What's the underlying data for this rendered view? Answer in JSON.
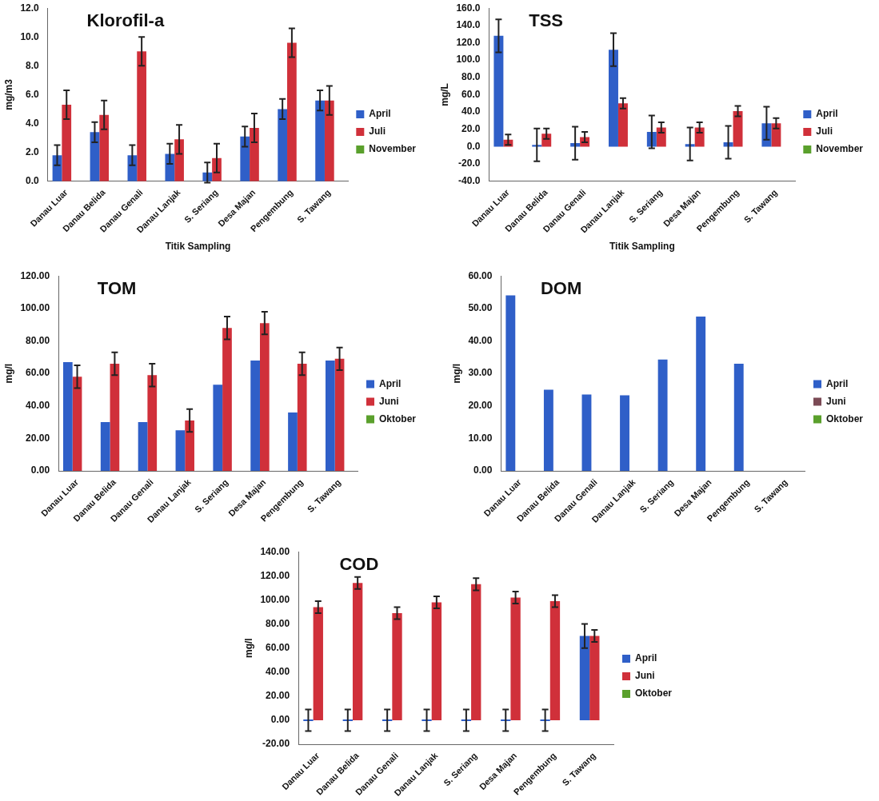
{
  "chart_data": [
    {
      "type": "bar",
      "title": "Klorofil-a",
      "ylabel": "mg/m3",
      "xlabel": "Titik Sampling",
      "categories": [
        "Danau Luar",
        "Danau Belida",
        "Danau Genali",
        "Danau Lanjak",
        "S. Seriang",
        "Desa Majan",
        "Pengembung",
        "S. Tawang"
      ],
      "series": [
        {
          "name": "April",
          "color": "#2f5fc8",
          "values": [
            1.8,
            3.4,
            1.8,
            1.9,
            0.6,
            3.1,
            5.0,
            5.6
          ],
          "errors": [
            0.7,
            0.7,
            0.7,
            0.7,
            0.7,
            0.7,
            0.7,
            0.7
          ]
        },
        {
          "name": "Juli",
          "color": "#d0303a",
          "values": [
            5.3,
            4.6,
            9.0,
            2.9,
            1.6,
            3.7,
            9.6,
            5.6
          ],
          "errors": [
            1.0,
            1.0,
            1.0,
            1.0,
            1.0,
            1.0,
            1.0,
            1.0
          ]
        },
        {
          "name": "November",
          "color": "#5aa02c",
          "values": [
            null,
            null,
            null,
            null,
            null,
            null,
            null,
            null
          ]
        }
      ],
      "ylim": [
        0,
        12
      ],
      "yticks": [
        {
          "value": 0,
          "label": "0.0"
        },
        {
          "value": 2,
          "label": "2.0"
        },
        {
          "value": 4,
          "label": "4.0"
        },
        {
          "value": 6,
          "label": "6.0"
        },
        {
          "value": 8,
          "label": "8.0"
        },
        {
          "value": 10,
          "label": "10.0"
        },
        {
          "value": 12,
          "label": "12.0"
        }
      ],
      "legend": "right",
      "grid": false
    },
    {
      "type": "bar",
      "title": "TSS",
      "ylabel": "mg/L",
      "xlabel": "Titik Sampling",
      "categories": [
        "Danau Luar",
        "Danau Belida",
        "Danau Genali",
        "Danau Lanjak",
        "S. Seriang",
        "Desa Majan",
        "Pengembung",
        "S. Tawang"
      ],
      "series": [
        {
          "name": "April",
          "color": "#2f5fc8",
          "values": [
            128,
            2,
            4,
            112,
            17,
            3,
            5,
            27
          ],
          "errors": [
            19,
            19,
            19,
            19,
            19,
            19,
            19,
            19
          ]
        },
        {
          "name": "Juli",
          "color": "#d0303a",
          "values": [
            8,
            15,
            11,
            50,
            22,
            22,
            41,
            27
          ],
          "errors": [
            6,
            6,
            6,
            6,
            6,
            6,
            6,
            6
          ]
        },
        {
          "name": "November",
          "color": "#5aa02c",
          "values": [
            null,
            null,
            null,
            null,
            null,
            null,
            null,
            null
          ]
        }
      ],
      "ylim": [
        -40,
        160
      ],
      "yticks": [
        {
          "value": -40,
          "label": "-40.0"
        },
        {
          "value": -20,
          "label": "-20.0"
        },
        {
          "value": 0,
          "label": "0.0"
        },
        {
          "value": 20,
          "label": "20.0"
        },
        {
          "value": 40,
          "label": "40.0"
        },
        {
          "value": 60,
          "label": "60.0"
        },
        {
          "value": 80,
          "label": "80.0"
        },
        {
          "value": 100,
          "label": "100.0"
        },
        {
          "value": 120,
          "label": "120.0"
        },
        {
          "value": 140,
          "label": "140.0"
        },
        {
          "value": 160,
          "label": "160.0"
        }
      ],
      "legend": "right",
      "grid": false
    },
    {
      "type": "bar",
      "title": "TOM",
      "ylabel": "mg/l",
      "categories": [
        "Danau Luar",
        "Danau Belida",
        "Danau Genali",
        "Danau Lanjak",
        "S. Seriang",
        "Desa Majan",
        "Pengembung",
        "S. Tawang"
      ],
      "series": [
        {
          "name": "April",
          "color": "#2f5fc8",
          "values": [
            67,
            30,
            30,
            25,
            53,
            68,
            36,
            68
          ]
        },
        {
          "name": "Juni",
          "color": "#d0303a",
          "values": [
            58,
            66,
            59,
            31,
            88,
            91,
            66,
            69
          ],
          "errors": [
            7,
            7,
            7,
            7,
            7,
            7,
            7,
            7
          ]
        },
        {
          "name": "Oktober",
          "color": "#5aa02c",
          "values": [
            null,
            null,
            null,
            null,
            null,
            null,
            null,
            null
          ]
        }
      ],
      "ylim": [
        0,
        120
      ],
      "yticks": [
        {
          "value": 0,
          "label": "0.00"
        },
        {
          "value": 20,
          "label": "20.00"
        },
        {
          "value": 40,
          "label": "40.00"
        },
        {
          "value": 60,
          "label": "60.00"
        },
        {
          "value": 80,
          "label": "80.00"
        },
        {
          "value": 100,
          "label": "100.00"
        },
        {
          "value": 120,
          "label": "120.00"
        }
      ],
      "legend": "right",
      "grid": false
    },
    {
      "type": "bar",
      "title": "DOM",
      "ylabel": "mg/l",
      "categories": [
        "Danau Luar",
        "Danau Belida",
        "Danau Genali",
        "Danau Lanjak",
        "S. Seriang",
        "Desa Majan",
        "Pengembung",
        "S. Tawang"
      ],
      "series": [
        {
          "name": "April",
          "color": "#2f5fc8",
          "values": [
            54,
            25,
            23.5,
            23.3,
            34.3,
            47.5,
            33,
            null
          ]
        },
        {
          "name": "Juni",
          "color": "#7b4a55",
          "values": [
            null,
            null,
            null,
            null,
            null,
            null,
            null,
            null
          ]
        },
        {
          "name": "Oktober",
          "color": "#5aa02c",
          "values": [
            null,
            null,
            null,
            null,
            null,
            null,
            null,
            null
          ]
        }
      ],
      "ylim": [
        0,
        60
      ],
      "yticks": [
        {
          "value": 0,
          "label": "0.00"
        },
        {
          "value": 10,
          "label": "10.00"
        },
        {
          "value": 20,
          "label": "20.00"
        },
        {
          "value": 30,
          "label": "30.00"
        },
        {
          "value": 40,
          "label": "40.00"
        },
        {
          "value": 50,
          "label": "50.00"
        },
        {
          "value": 60,
          "label": "60.00"
        }
      ],
      "legend": "right",
      "grid": false
    },
    {
      "type": "bar",
      "title": "COD",
      "ylabel": "mg/l",
      "categories": [
        "Danau Luar",
        "Danau Belida",
        "Danau Genali",
        "Danau Lanjak",
        "S. Seriang",
        "Desa Majan",
        "Pengembung",
        "S. Tawang"
      ],
      "series": [
        {
          "name": "April",
          "color": "#2f5fc8",
          "values": [
            0,
            0,
            0,
            0,
            0,
            0,
            0,
            70
          ],
          "errors": [
            9,
            9,
            9,
            9,
            9,
            9,
            9,
            10
          ]
        },
        {
          "name": "Juni",
          "color": "#d0303a",
          "values": [
            94,
            114,
            89,
            98,
            113,
            102,
            99,
            70
          ],
          "errors": [
            5,
            5,
            5,
            5,
            5,
            5,
            5,
            5
          ]
        },
        {
          "name": "Oktober",
          "color": "#5aa02c",
          "values": [
            null,
            null,
            null,
            null,
            null,
            null,
            null,
            null
          ]
        }
      ],
      "ylim": [
        -20,
        140
      ],
      "yticks": [
        {
          "value": -20,
          "label": "-20.00"
        },
        {
          "value": 0,
          "label": "0.00"
        },
        {
          "value": 20,
          "label": "20.00"
        },
        {
          "value": 40,
          "label": "40.00"
        },
        {
          "value": 60,
          "label": "60.00"
        },
        {
          "value": 80,
          "label": "80.00"
        },
        {
          "value": 100,
          "label": "100.00"
        },
        {
          "value": 120,
          "label": "120.00"
        },
        {
          "value": 140,
          "label": "140.00"
        }
      ],
      "legend": "right",
      "grid": false
    }
  ]
}
